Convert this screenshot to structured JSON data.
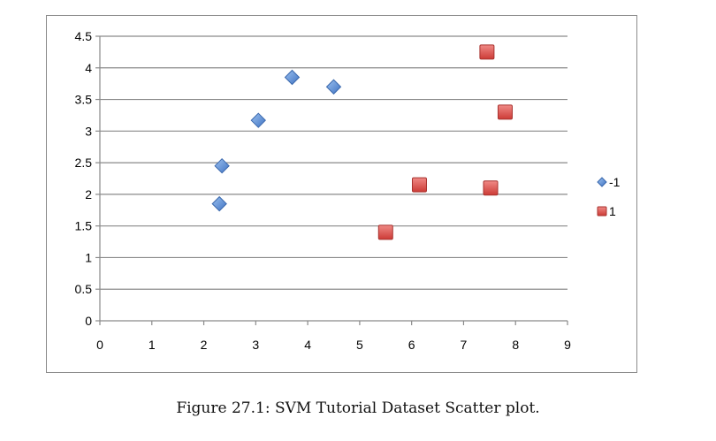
{
  "chart_data": {
    "type": "scatter",
    "title": "",
    "xlabel": "",
    "ylabel": "",
    "xlim": [
      0,
      9
    ],
    "ylim": [
      0,
      4.5
    ],
    "x_ticks": [
      "0",
      "1",
      "2",
      "3",
      "4",
      "5",
      "6",
      "7",
      "8",
      "9"
    ],
    "y_ticks": [
      "0",
      "0.5",
      "1",
      "1.5",
      "2",
      "2.5",
      "3",
      "3.5",
      "4",
      "4.5"
    ],
    "grid": "horizontal",
    "legend_position": "right",
    "series": [
      {
        "name": "-1",
        "marker": "diamond",
        "color": "#5b8fd6",
        "points": [
          {
            "x": 2.3,
            "y": 1.85
          },
          {
            "x": 2.35,
            "y": 2.45
          },
          {
            "x": 3.05,
            "y": 3.17
          },
          {
            "x": 3.7,
            "y": 3.85
          },
          {
            "x": 4.5,
            "y": 3.7
          }
        ]
      },
      {
        "name": "1",
        "marker": "square",
        "color": "#d9534f",
        "points": [
          {
            "x": 5.5,
            "y": 1.4
          },
          {
            "x": 6.15,
            "y": 2.15
          },
          {
            "x": 7.45,
            "y": 4.25
          },
          {
            "x": 7.52,
            "y": 2.1
          },
          {
            "x": 7.8,
            "y": 3.3
          }
        ]
      }
    ]
  },
  "caption": "Figure 27.1: SVM Tutorial Dataset Scatter plot."
}
